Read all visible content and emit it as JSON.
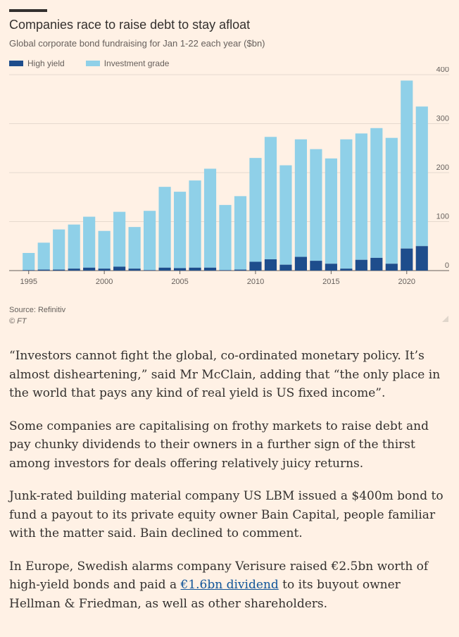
{
  "chart_data": {
    "type": "bar",
    "stacked": true,
    "title": "Companies race to raise debt to stay afloat",
    "subtitle": "Global corporate bond fundraising for Jan 1-22 each year ($bn)",
    "ylim": [
      0,
      400
    ],
    "yticks": [
      0,
      100,
      200,
      300,
      400
    ],
    "xtick_labels": [
      "1995",
      "2000",
      "2005",
      "2010",
      "2015",
      "2020"
    ],
    "categories": [
      "1995",
      "1996",
      "1997",
      "1998",
      "1999",
      "2000",
      "2001",
      "2002",
      "2003",
      "2004",
      "2005",
      "2006",
      "2007",
      "2008",
      "2009",
      "2010",
      "2011",
      "2012",
      "2013",
      "2014",
      "2015",
      "2016",
      "2017",
      "2018",
      "2019",
      "2020",
      "2021"
    ],
    "series": [
      {
        "name": "High yield",
        "color": "#1e4d8c",
        "values": [
          1,
          2,
          2,
          4,
          6,
          4,
          8,
          4,
          1,
          6,
          5,
          6,
          6,
          1,
          2,
          18,
          23,
          12,
          28,
          20,
          14,
          4,
          22,
          26,
          14,
          45,
          50
        ]
      },
      {
        "name": "Investment grade",
        "color": "#8fd0e8",
        "values": [
          35,
          55,
          82,
          90,
          104,
          77,
          112,
          85,
          121,
          165,
          156,
          178,
          202,
          133,
          150,
          212,
          250,
          203,
          240,
          228,
          215,
          264,
          258,
          265,
          257,
          343,
          285
        ]
      }
    ],
    "legend_position": "top-left",
    "grid": true,
    "yaxis_side": "right"
  },
  "source": "Source: Refinitiv",
  "copyright": "© FT",
  "article": {
    "p1": "“Investors cannot fight the global, co-ordinated monetary policy. It’s almost disheartening,” said Mr McClain, adding that “the only place in the world that pays any kind of real yield is US fixed income”.",
    "p2": "Some companies are capitalising on frothy markets to raise debt and pay chunky dividends to their owners in a further sign of the thirst among investors for deals offering relatively juicy returns.",
    "p3": "Junk-rated building material company US LBM issued a $400m bond to fund a payout to its private equity owner Bain Capital, people familiar with the matter said. Bain declined to comment.",
    "p4_before": "In Europe, Swedish alarms company Verisure raised €2.5bn worth of high-yield bonds and paid a ",
    "p4_link": "€1.6bn dividend",
    "p4_after": " to its buyout owner Hellman & Friedman, as well as other shareholders."
  }
}
